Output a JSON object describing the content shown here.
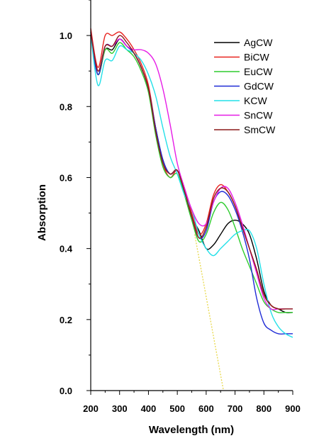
{
  "chart_data": {
    "type": "line",
    "title": "",
    "xlabel": "Wavelength (nm)",
    "ylabel": "Absorption",
    "xlim": [
      200,
      900
    ],
    "ylim": [
      0.0,
      1.1
    ],
    "xticks": [
      200,
      300,
      400,
      500,
      600,
      700,
      800,
      900
    ],
    "yticks": [
      0.0,
      0.2,
      0.4,
      0.6,
      0.8,
      1.0
    ],
    "ytick_labels": [
      "0.0",
      "0.2",
      "0.4",
      "0.6",
      "0.8",
      "1.0"
    ],
    "grid": false,
    "legend_position": "top-right",
    "series": [
      {
        "name": "AgCW",
        "color": "#000000",
        "x": [
          200,
          225,
          250,
          275,
          300,
          325,
          350,
          375,
          400,
          425,
          450,
          475,
          500,
          525,
          550,
          575,
          600,
          625,
          650,
          675,
          700,
          725,
          750,
          775,
          800,
          825,
          850,
          875,
          900
        ],
        "y": [
          1.0,
          0.89,
          0.96,
          0.96,
          0.99,
          0.97,
          0.95,
          0.91,
          0.85,
          0.74,
          0.65,
          0.61,
          0.62,
          0.56,
          0.49,
          0.45,
          0.4,
          0.41,
          0.44,
          0.47,
          0.48,
          0.47,
          0.44,
          0.37,
          0.28,
          0.24,
          0.23,
          0.22,
          0.22
        ]
      },
      {
        "name": "BiCW",
        "color": "#e8231f",
        "x": [
          200,
          225,
          250,
          275,
          300,
          325,
          350,
          375,
          400,
          425,
          450,
          475,
          500,
          525,
          550,
          575,
          600,
          625,
          650,
          675,
          700,
          725,
          750,
          775,
          800,
          825,
          850,
          875,
          900
        ],
        "y": [
          1.02,
          0.91,
          1.0,
          1.0,
          1.01,
          0.99,
          0.96,
          0.92,
          0.86,
          0.74,
          0.64,
          0.6,
          0.62,
          0.57,
          0.5,
          0.44,
          0.47,
          0.55,
          0.58,
          0.56,
          0.52,
          0.46,
          0.4,
          0.34,
          0.27,
          0.24,
          0.23,
          0.23,
          0.23
        ]
      },
      {
        "name": "EuCW",
        "color": "#2ecc2e",
        "x": [
          200,
          225,
          250,
          275,
          300,
          325,
          350,
          375,
          400,
          425,
          450,
          475,
          500,
          525,
          550,
          575,
          600,
          625,
          650,
          675,
          700,
          725,
          750,
          775,
          800,
          825,
          850,
          875,
          900
        ],
        "y": [
          1.0,
          0.89,
          0.96,
          0.95,
          0.98,
          0.96,
          0.94,
          0.9,
          0.84,
          0.72,
          0.63,
          0.6,
          0.61,
          0.55,
          0.48,
          0.42,
          0.44,
          0.5,
          0.53,
          0.51,
          0.46,
          0.4,
          0.35,
          0.3,
          0.25,
          0.23,
          0.22,
          0.22,
          0.22
        ]
      },
      {
        "name": "GdCW",
        "color": "#1f2bd6",
        "x": [
          200,
          225,
          250,
          275,
          300,
          325,
          350,
          375,
          400,
          425,
          450,
          475,
          500,
          525,
          550,
          575,
          600,
          625,
          650,
          675,
          700,
          725,
          750,
          775,
          800,
          825,
          850,
          875,
          900
        ],
        "y": [
          1.0,
          0.89,
          0.97,
          0.97,
          0.99,
          0.97,
          0.95,
          0.91,
          0.85,
          0.74,
          0.65,
          0.61,
          0.62,
          0.56,
          0.49,
          0.43,
          0.45,
          0.53,
          0.56,
          0.55,
          0.51,
          0.45,
          0.37,
          0.26,
          0.19,
          0.17,
          0.16,
          0.16,
          0.16
        ]
      },
      {
        "name": "KCW",
        "color": "#22e0e8",
        "x": [
          200,
          225,
          250,
          275,
          300,
          325,
          350,
          375,
          400,
          425,
          450,
          475,
          500,
          525,
          550,
          575,
          600,
          625,
          650,
          675,
          700,
          725,
          750,
          775,
          800,
          825,
          850,
          875,
          900
        ],
        "y": [
          1.0,
          0.86,
          0.93,
          0.93,
          0.97,
          0.96,
          0.95,
          0.93,
          0.89,
          0.83,
          0.74,
          0.66,
          0.61,
          0.55,
          0.51,
          0.44,
          0.4,
          0.38,
          0.4,
          0.42,
          0.44,
          0.45,
          0.45,
          0.4,
          0.3,
          0.22,
          0.18,
          0.16,
          0.15
        ]
      },
      {
        "name": "SnCW",
        "color": "#e61ce6",
        "x": [
          200,
          225,
          250,
          275,
          300,
          325,
          350,
          375,
          400,
          425,
          450,
          475,
          500,
          525,
          550,
          575,
          600,
          625,
          650,
          675,
          700,
          725,
          750,
          775,
          800,
          825,
          850,
          875,
          900
        ],
        "y": [
          1.01,
          0.9,
          0.97,
          0.97,
          0.99,
          0.97,
          0.96,
          0.96,
          0.95,
          0.92,
          0.85,
          0.75,
          0.64,
          0.57,
          0.51,
          0.47,
          0.47,
          0.53,
          0.57,
          0.57,
          0.53,
          0.47,
          0.4,
          0.33,
          0.26,
          0.23,
          0.23,
          0.23,
          0.23
        ]
      },
      {
        "name": "SmCW",
        "color": "#8b1a1a",
        "x": [
          200,
          225,
          250,
          275,
          300,
          325,
          350,
          375,
          400,
          425,
          450,
          475,
          500,
          525,
          550,
          575,
          600,
          625,
          650,
          675,
          700,
          725,
          750,
          775,
          800,
          825,
          850,
          875,
          900
        ],
        "y": [
          1.01,
          0.9,
          0.97,
          0.97,
          1.0,
          0.98,
          0.95,
          0.91,
          0.85,
          0.73,
          0.64,
          0.61,
          0.62,
          0.56,
          0.49,
          0.43,
          0.46,
          0.54,
          0.57,
          0.56,
          0.52,
          0.46,
          0.4,
          0.34,
          0.27,
          0.24,
          0.23,
          0.23,
          0.23
        ]
      }
    ],
    "annotations": [
      {
        "type": "dotted-line",
        "color": "#e8d84a",
        "x": [
          560,
          660
        ],
        "y": [
          0.44,
          0.0
        ]
      }
    ]
  }
}
